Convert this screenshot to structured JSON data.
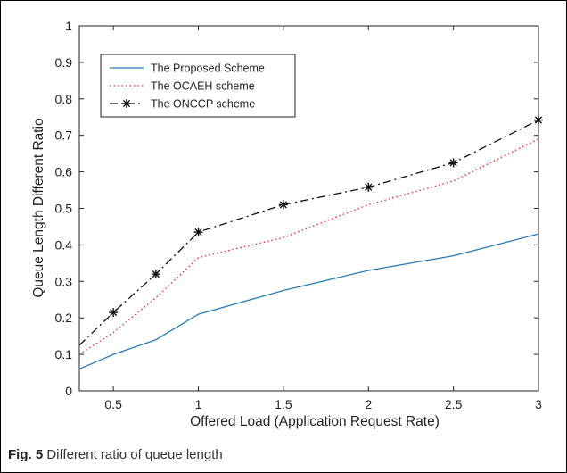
{
  "chart_data": {
    "type": "line",
    "xlabel": "Offered Load (Application Request Rate)",
    "ylabel": "Queue Length Different Ratio",
    "xlim": [
      0.3,
      3
    ],
    "ylim": [
      0,
      1
    ],
    "xticks": [
      "0.5",
      "1",
      "1.5",
      "2",
      "2.5",
      "3"
    ],
    "xtick_values": [
      0.5,
      1,
      1.5,
      2,
      2.5,
      3
    ],
    "yticks": [
      "0",
      "0.1",
      "0.2",
      "0.3",
      "0.4",
      "0.5",
      "0.6",
      "0.7",
      "0.8",
      "0.9",
      "1"
    ],
    "ytick_values": [
      0,
      0.1,
      0.2,
      0.3,
      0.4,
      0.5,
      0.6,
      0.7,
      0.8,
      0.9,
      1
    ],
    "grid": false,
    "legend_position": "top-left",
    "series": [
      {
        "name": "The Proposed Scheme",
        "color": "#2a7ab8",
        "style": "solid",
        "marker": "none",
        "x": [
          0.3,
          0.5,
          0.75,
          1,
          1.5,
          2,
          2.5,
          3
        ],
        "y": [
          0.06,
          0.1,
          0.14,
          0.21,
          0.275,
          0.33,
          0.37,
          0.43
        ]
      },
      {
        "name": "The OCAEH scheme",
        "color": "#e8222a",
        "style": "dotted",
        "marker": "none",
        "x": [
          0.3,
          0.5,
          0.75,
          1,
          1.5,
          2,
          2.5,
          3
        ],
        "y": [
          0.1,
          0.16,
          0.255,
          0.365,
          0.42,
          0.51,
          0.575,
          0.69
        ]
      },
      {
        "name": "The ONCCP scheme",
        "color": "#111111",
        "style": "dashdot",
        "marker": "asterisk",
        "x": [
          0.3,
          0.5,
          0.75,
          1,
          1.5,
          2,
          2.5,
          3
        ],
        "y": [
          0.125,
          0.215,
          0.32,
          0.435,
          0.51,
          0.558,
          0.625,
          0.742
        ],
        "marker_points": [
          1,
          2,
          3,
          4,
          5,
          6,
          7
        ]
      }
    ]
  },
  "caption": {
    "label": "Fig. 5",
    "text": " Different ratio of queue length"
  }
}
